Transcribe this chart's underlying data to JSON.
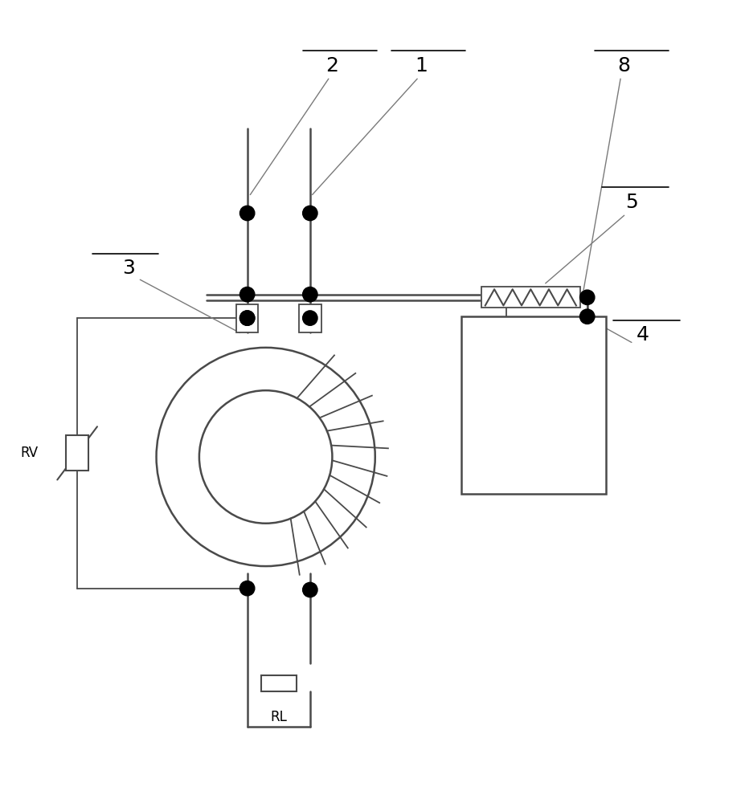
{
  "bg_color": "#ffffff",
  "lc": "#4a4a4a",
  "lc_thin": "#7a7a7a",
  "lw_main": 1.8,
  "lw_thin": 1.0,
  "dot_r": 0.01
}
